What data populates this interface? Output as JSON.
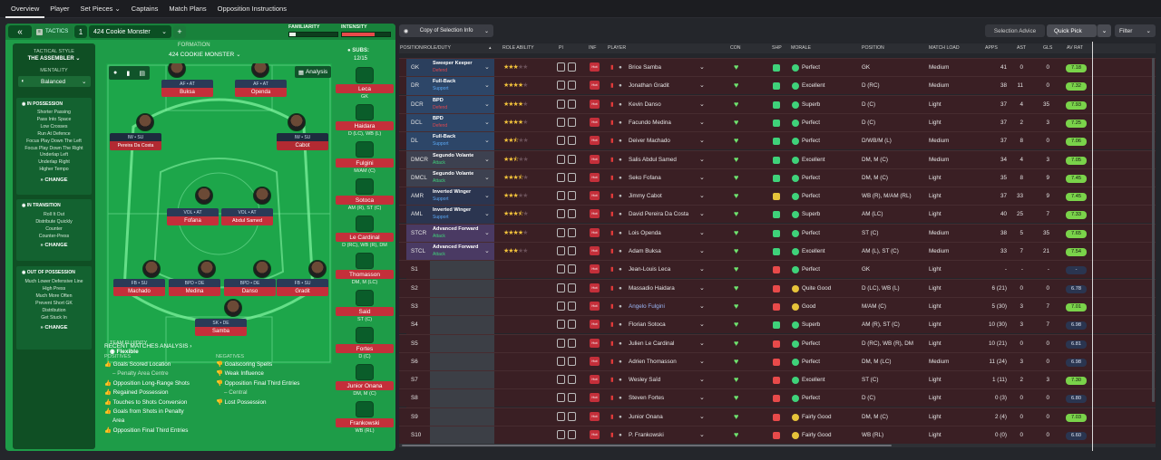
{
  "nav": {
    "tabs": [
      "Overview",
      "Player",
      "Set Pieces ⌄",
      "Captains",
      "Match Plans",
      "Opposition Instructions"
    ]
  },
  "tactic": {
    "tactics_label": "TACTICS",
    "slot": "1",
    "name": "424 Cookie Monster",
    "familiarity_label": "FAMILIARITY",
    "intensity_label": "INTENSITY",
    "formation_label": "FORMATION",
    "formation_name": "424 COOKIE MONSTER",
    "analysis": "Analysis",
    "subs_label": "SUBS:",
    "subs_count": "12/15"
  },
  "style": {
    "label": "TACTICAL STYLE",
    "name": "THE ASSEMBLER",
    "mentality_label": "MENTALITY",
    "mentality": "Balanced",
    "in_possession_label": "IN POSSESSION",
    "in_possession": [
      "Shorter Passing",
      "Pass Into Space",
      "Low Crosses",
      "Run At Defence",
      "Focus Play Down The Left",
      "Focus Play Down The Right",
      "Underlap Left",
      "Underlap Right",
      "Higher Tempo"
    ],
    "in_transition_label": "IN TRANSITION",
    "in_transition": [
      "Roll It Out",
      "Distribute Quickly",
      "Counter",
      "Counter-Press"
    ],
    "out_of_possession_label": "OUT OF POSSESSION",
    "out_of_possession": [
      "Much Lower Defensive Line",
      "High Press",
      "Much More Often",
      "Prevent Short GK",
      "Distribution",
      "Get Stuck In"
    ],
    "change": "CHANGE"
  },
  "fluidity": {
    "label": "TEAM FLUIDITY",
    "value": "Flexible"
  },
  "analysis": {
    "title": "RECENT MATCHES ANALYSIS",
    "positives_label": "POSITIVES",
    "positives": [
      "Goals Scored Location",
      "– Penalty Area Centre",
      "Opposition Long-Range Shots",
      "Regained Possession",
      "Touches to Shots Conversion",
      "Goals from Shots in Penalty",
      "Area",
      "Opposition Final Third Entries"
    ],
    "negatives_label": "NEGATIVES",
    "negatives": [
      "Goalscoring Spells",
      "Weak Influence",
      "Opposition Final Third Entries",
      "– Central",
      "Lost Possession"
    ]
  },
  "pitch_players": [
    {
      "role": "AF • AT",
      "name": "Buksa"
    },
    {
      "role": "AF • AT",
      "name": "Openda"
    },
    {
      "role": "IW • SU",
      "name": "Pereira Da Costa"
    },
    {
      "role": "IW • SU",
      "name": "Cabot"
    },
    {
      "role": "VOL • AT",
      "name": "Fofana"
    },
    {
      "role": "VOL • AT",
      "name": "Abdul Samed"
    },
    {
      "role": "FB • SU",
      "name": "Machado"
    },
    {
      "role": "BPD • DE",
      "name": "Medina"
    },
    {
      "role": "BPD • DE",
      "name": "Danso"
    },
    {
      "role": "FB • SU",
      "name": "Gradit"
    },
    {
      "role": "SK • DE",
      "name": "Samba"
    }
  ],
  "subs": [
    {
      "name": "Leca",
      "pos": "GK"
    },
    {
      "name": "Haidara",
      "pos": "D (LC), WB (L)"
    },
    {
      "name": "Fulgini",
      "pos": "M/AM (C)"
    },
    {
      "name": "Sotoca",
      "pos": "AM (R), ST (C)"
    },
    {
      "name": "Le Cardinal",
      "pos": "D (RC), WB (R), DM"
    },
    {
      "name": "Thomasson",
      "pos": "DM, M (LC)"
    },
    {
      "name": "Said",
      "pos": "ST (C)"
    },
    {
      "name": "Fortes",
      "pos": "D (C)"
    },
    {
      "name": "Junior Onana",
      "pos": "DM, M (C)"
    },
    {
      "name": "Frankowski",
      "pos": "WB (RL)"
    }
  ],
  "toolbar": {
    "view": "Copy of Selection Info",
    "advice": "Selection Advice",
    "quick_pick": "Quick Pick",
    "filter": "Filter"
  },
  "columns": [
    "POSITION/ROLE/DUTY",
    "ROLE ABILITY",
    "PI",
    "INF",
    "PLAYER",
    "CON",
    "SHP",
    "MORALE",
    "POSITION",
    "MATCH LOAD",
    "APPS",
    "AST",
    "GLS",
    "AV RAT"
  ],
  "rows": [
    {
      "pos": "GK",
      "role": "Sweeper Keeper",
      "duty": "Defend",
      "stars": 3,
      "player": "Brice Samba",
      "morale": "Perfect",
      "position": "GK",
      "load": "Medium",
      "apps": "41",
      "ast": "0",
      "gls": "0",
      "rat": "7.18"
    },
    {
      "pos": "DR",
      "role": "Full-Back",
      "duty": "Support",
      "stars": 4,
      "player": "Jonathan Gradit",
      "morale": "Excellent",
      "position": "D (RC)",
      "load": "Medium",
      "apps": "38",
      "ast": "11",
      "gls": "0",
      "rat": "7.32"
    },
    {
      "pos": "DCR",
      "role": "BPD",
      "duty": "Defend",
      "stars": 4,
      "player": "Kevin Danso",
      "morale": "Superb",
      "position": "D (C)",
      "load": "Light",
      "apps": "37",
      "ast": "4",
      "gls": "35",
      "rat": "7.93"
    },
    {
      "pos": "DCL",
      "role": "BPD",
      "duty": "Defend",
      "stars": 4,
      "player": "Facundo Medina",
      "morale": "Perfect",
      "position": "D (C)",
      "load": "Light",
      "apps": "37",
      "ast": "2",
      "gls": "3",
      "rat": "7.25"
    },
    {
      "pos": "DL",
      "role": "Full-Back",
      "duty": "Support",
      "stars": 2.5,
      "player": "Deiver Machado",
      "morale": "Perfect",
      "position": "D/WB/M (L)",
      "load": "Medium",
      "apps": "37",
      "ast": "8",
      "gls": "0",
      "rat": "7.06"
    },
    {
      "pos": "DMCR",
      "role": "Segundo Volante",
      "duty": "Attack",
      "stars": 2.5,
      "player": "Salis Abdul Samed",
      "morale": "Excellent",
      "position": "DM, M (C)",
      "load": "Medium",
      "apps": "34",
      "ast": "4",
      "gls": "3",
      "rat": "7.05"
    },
    {
      "pos": "DMCL",
      "role": "Segundo Volante",
      "duty": "Attack",
      "stars": 3.5,
      "player": "Seko Fofana",
      "morale": "Perfect",
      "position": "DM, M (C)",
      "load": "Light",
      "apps": "35",
      "ast": "8",
      "gls": "9",
      "rat": "7.45"
    },
    {
      "pos": "AMR",
      "role": "Inverted Winger",
      "duty": "Support",
      "stars": 3,
      "player": "Jimmy Cabot",
      "morale": "Perfect",
      "position": "WB (R), M/AM (RL)",
      "load": "Light",
      "apps": "37",
      "ast": "33",
      "gls": "9",
      "rat": "7.45"
    },
    {
      "pos": "AML",
      "role": "Inverted Winger",
      "duty": "Support",
      "stars": 3.5,
      "player": "David Pereira Da Costa",
      "morale": "Superb",
      "position": "AM (LC)",
      "load": "Light",
      "apps": "40",
      "ast": "25",
      "gls": "7",
      "rat": "7.33"
    },
    {
      "pos": "STCR",
      "role": "Advanced Forward",
      "duty": "Attack",
      "stars": 4,
      "player": "Lois Openda",
      "morale": "Perfect",
      "position": "ST (C)",
      "load": "Medium",
      "apps": "38",
      "ast": "5",
      "gls": "35",
      "rat": "7.65"
    },
    {
      "pos": "STCL",
      "role": "Advanced Forward",
      "duty": "Attack",
      "stars": 3,
      "player": "Adam Buksa",
      "morale": "Excellent",
      "position": "AM (L), ST (C)",
      "load": "Medium",
      "apps": "33",
      "ast": "7",
      "gls": "21",
      "rat": "7.54"
    },
    {
      "pos": "S1",
      "role": "",
      "duty": "",
      "stars": 0,
      "player": "Jean-Louis Leca",
      "morale": "Perfect",
      "position": "GK",
      "load": "Light",
      "apps": "-",
      "ast": "-",
      "gls": "-",
      "rat": "-"
    },
    {
      "pos": "S2",
      "role": "",
      "duty": "",
      "stars": 0,
      "player": "Massadio Haidara",
      "morale": "Quite Good",
      "position": "D (LC), WB (L)",
      "load": "Light",
      "apps": "6 (21)",
      "ast": "0",
      "gls": "0",
      "rat": "6.78"
    },
    {
      "pos": "S3",
      "role": "",
      "duty": "",
      "stars": 0,
      "player": "Angelo Fulgini",
      "morale": "Good",
      "position": "M/AM (C)",
      "load": "Light",
      "apps": "5 (30)",
      "ast": "3",
      "gls": "7",
      "rat": "7.01"
    },
    {
      "pos": "S4",
      "role": "",
      "duty": "",
      "stars": 0,
      "player": "Florian Sotoca",
      "morale": "Superb",
      "position": "AM (R), ST (C)",
      "load": "Light",
      "apps": "10 (30)",
      "ast": "3",
      "gls": "7",
      "rat": "6.98"
    },
    {
      "pos": "S5",
      "role": "",
      "duty": "",
      "stars": 0,
      "player": "Julien Le Cardinal",
      "morale": "Perfect",
      "position": "D (RC), WB (R), DM",
      "load": "Light",
      "apps": "10 (21)",
      "ast": "0",
      "gls": "0",
      "rat": "6.81"
    },
    {
      "pos": "S6",
      "role": "",
      "duty": "",
      "stars": 0,
      "player": "Adrien Thomasson",
      "morale": "Perfect",
      "position": "DM, M (LC)",
      "load": "Medium",
      "apps": "11 (24)",
      "ast": "3",
      "gls": "0",
      "rat": "6.98"
    },
    {
      "pos": "S7",
      "role": "",
      "duty": "",
      "stars": 0,
      "player": "Wesley Saïd",
      "morale": "Excellent",
      "position": "ST (C)",
      "load": "Light",
      "apps": "1 (11)",
      "ast": "2",
      "gls": "3",
      "rat": "7.30"
    },
    {
      "pos": "S8",
      "role": "",
      "duty": "",
      "stars": 0,
      "player": "Steven Fortes",
      "morale": "Perfect",
      "position": "D (C)",
      "load": "Light",
      "apps": "0 (3)",
      "ast": "0",
      "gls": "0",
      "rat": "6.80"
    },
    {
      "pos": "S9",
      "role": "",
      "duty": "",
      "stars": 0,
      "player": "Junior Onana",
      "morale": "Fairly Good",
      "position": "DM, M (C)",
      "load": "Light",
      "apps": "2 (4)",
      "ast": "0",
      "gls": "0",
      "rat": "7.03"
    },
    {
      "pos": "S10",
      "role": "",
      "duty": "",
      "stars": 0,
      "player": "P. Frankowski",
      "morale": "Fairly Good",
      "position": "WB (RL)",
      "load": "Light",
      "apps": "0 (0)",
      "ast": "0",
      "gls": "0",
      "rat": "6.60"
    }
  ],
  "colors": {
    "green": "#1e9c48",
    "defend": "#e2474f",
    "support": "#5aa8f5",
    "attack": "#3fd27a"
  }
}
